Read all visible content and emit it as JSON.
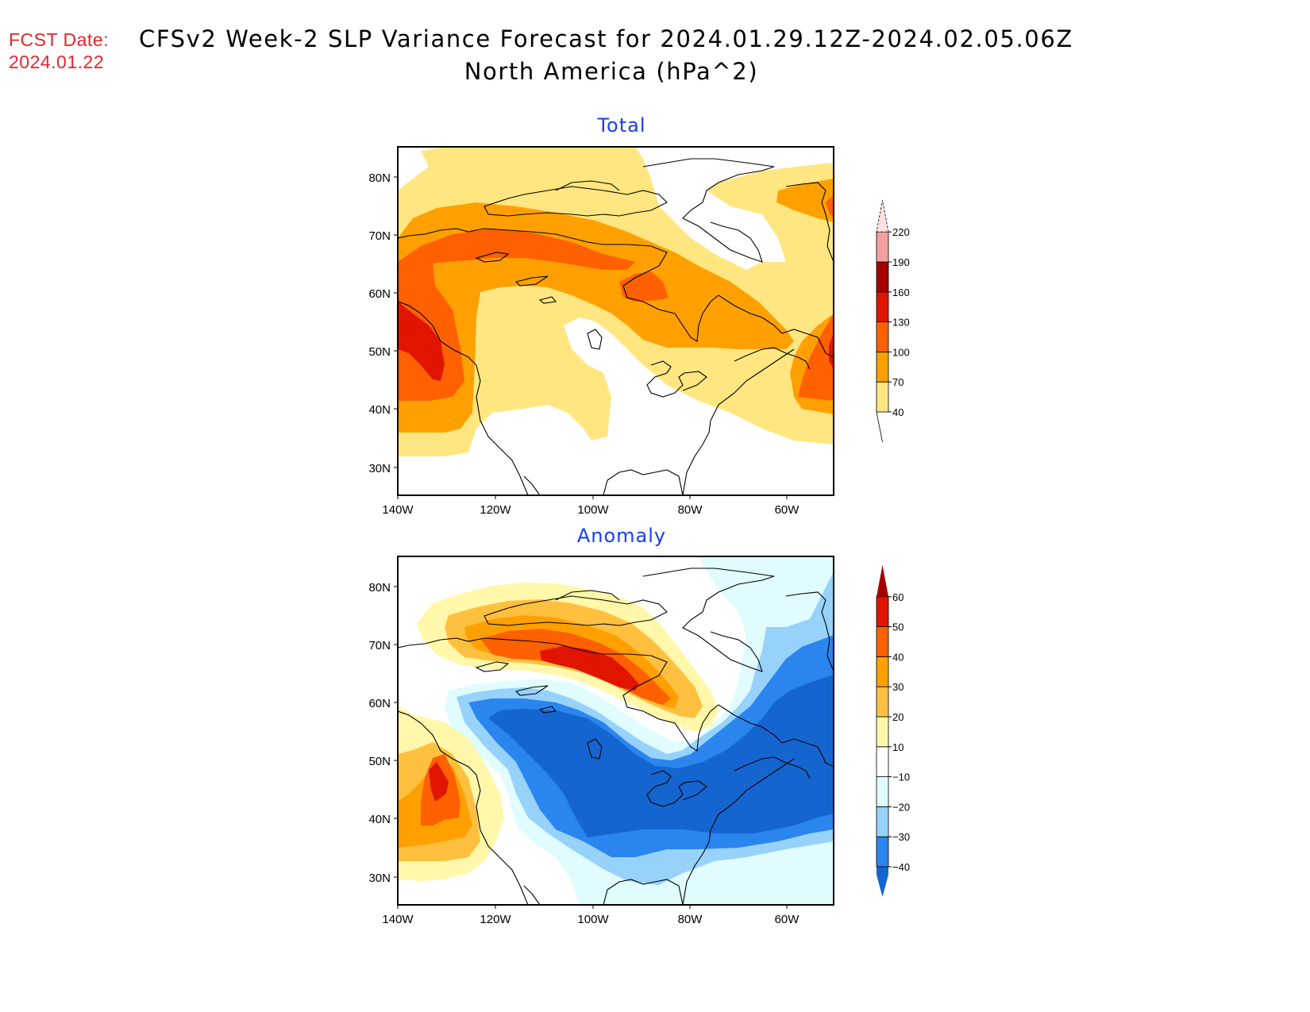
{
  "header": {
    "fcst_label": "FCST Date:",
    "fcst_date": "2024.01.22",
    "title_line1": "CFSv2 Week-2 SLP Variance Forecast for 2024.01.29.12Z-2024.02.05.06Z",
    "title_line2": "North America (hPa^2)"
  },
  "axes": {
    "lat_ticks": [
      "80N",
      "70N",
      "60N",
      "50N",
      "40N",
      "30N"
    ],
    "lon_ticks": [
      "140W",
      "120W",
      "100W",
      "80W",
      "60W"
    ]
  },
  "chart_data": [
    {
      "type": "heatmap",
      "title": "Total",
      "units": "hPa^2",
      "region": "North America",
      "lat_range": [
        25,
        85
      ],
      "lon_range": [
        -140,
        -50
      ],
      "colorbar": {
        "levels": [
          "40",
          "70",
          "100",
          "130",
          "160",
          "190",
          "220"
        ],
        "colors": [
          "#ffe680",
          "#ffa000",
          "#ff6000",
          "#e11400",
          "#a50000",
          "#f5a0a0",
          "#fde0e0"
        ],
        "below_color": "#ffffff"
      },
      "features": [
        {
          "name": "max-northwest-pacific",
          "lat": 48,
          "lon": -134,
          "value_range": "130-160"
        },
        {
          "name": "band-arctic-canada",
          "lat": 68,
          "lon": -110,
          "value_range": "100-130"
        },
        {
          "name": "max-north-atlantic",
          "lat": 47,
          "lon": -52,
          "value_range": "100-130"
        },
        {
          "name": "min-greenland",
          "lat": 76,
          "lon": -60,
          "value_range": "<40"
        },
        {
          "name": "min-central-us",
          "lat": 40,
          "lon": -95,
          "value_range": "<40"
        }
      ]
    },
    {
      "type": "heatmap",
      "title": "Anomaly",
      "units": "hPa^2",
      "region": "North America",
      "lat_range": [
        25,
        85
      ],
      "lon_range": [
        -140,
        -50
      ],
      "colorbar": {
        "levels": [
          "-40",
          "-30",
          "-20",
          "-10",
          "10",
          "20",
          "30",
          "40",
          "50",
          "60"
        ],
        "colors": [
          "#1565d0",
          "#2a85ee",
          "#96d2fa",
          "#e0fcfe",
          "#ffffff",
          "#fff8aa",
          "#ffc040",
          "#ffa000",
          "#ff6000",
          "#e11400",
          "#a50000"
        ]
      },
      "features": [
        {
          "name": "positive-max-arctic-canada",
          "lat": 66,
          "lon": -100,
          "value_range": "50-60"
        },
        {
          "name": "positive-max-northeast-pacific",
          "lat": 45,
          "lon": -132,
          "value_range": "50-60"
        },
        {
          "name": "negative-min-central-canada-us",
          "lat": 48,
          "lon": -100,
          "value_range": "<-40"
        },
        {
          "name": "negative-min-labrador-atlantic",
          "lat": 50,
          "lon": -60,
          "value_range": "<-40"
        }
      ]
    }
  ]
}
